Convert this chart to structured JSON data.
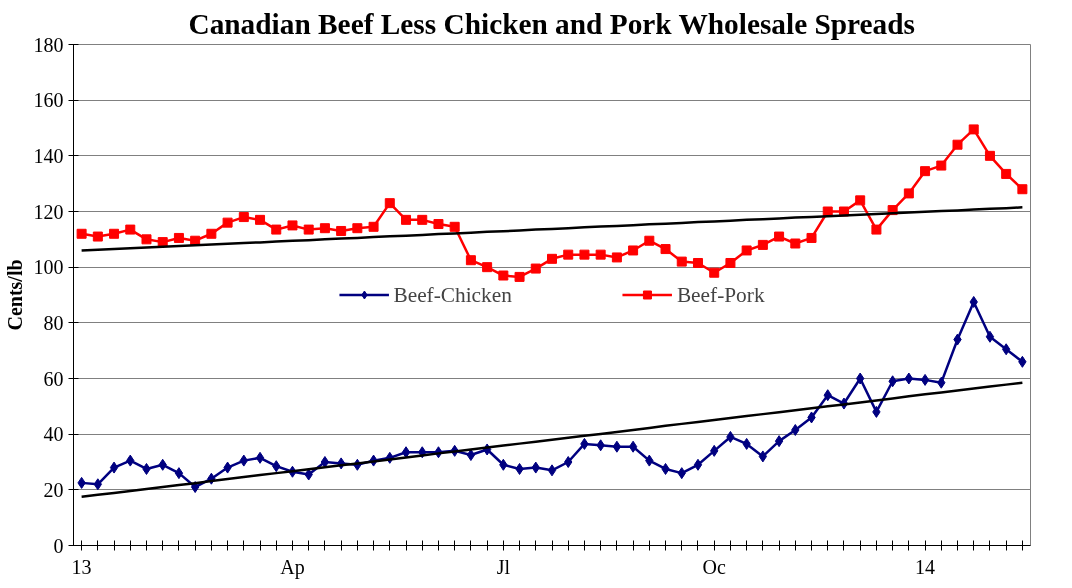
{
  "chart_data": {
    "type": "line",
    "title": "Canadian Beef Less Chicken and Pork Wholesale Spreads",
    "ylabel": "Cents/lb",
    "categories": [
      "13",
      null,
      null,
      null,
      null,
      null,
      null,
      null,
      null,
      null,
      null,
      null,
      null,
      "Ap",
      null,
      null,
      null,
      null,
      null,
      null,
      null,
      null,
      null,
      null,
      null,
      null,
      "Jl",
      null,
      null,
      null,
      null,
      null,
      null,
      null,
      null,
      null,
      null,
      null,
      null,
      "Oc",
      null,
      null,
      null,
      null,
      null,
      null,
      null,
      null,
      null,
      null,
      null,
      null,
      "14",
      null,
      null,
      null,
      null,
      null,
      null
    ],
    "ylim": [
      0,
      180
    ],
    "yticks": [
      0,
      20,
      40,
      60,
      80,
      100,
      120,
      140,
      160,
      180
    ],
    "grid": "y",
    "legend": "center",
    "series": [
      {
        "name": "Beef-Chicken",
        "color": "#000080",
        "marker": "diamond",
        "values": [
          22.5,
          22,
          28,
          30.5,
          27.5,
          29,
          26,
          21,
          24,
          28,
          30.5,
          31.5,
          28.5,
          26.5,
          25.5,
          30,
          29.5,
          29,
          30.5,
          31.5,
          33.5,
          33.5,
          33.5,
          34,
          32.5,
          34.5,
          29,
          27.5,
          28,
          27,
          30,
          36.5,
          36,
          35.5,
          35.5,
          30.5,
          27.5,
          26,
          29,
          34,
          39,
          36.5,
          32,
          37.5,
          41.5,
          46,
          54,
          51,
          60,
          48,
          59,
          60,
          59.5,
          58.5,
          74,
          87.5,
          75,
          70.5,
          66
        ]
      },
      {
        "name": "Beef-Pork",
        "color": "#ff0000",
        "marker": "square",
        "values": [
          112,
          111,
          112,
          113.5,
          110,
          109,
          110.5,
          109.5,
          112,
          116,
          118,
          117,
          113.5,
          115,
          113.5,
          114,
          113,
          114,
          114.5,
          123,
          117,
          117,
          115.5,
          114.5,
          102.5,
          100,
          97,
          96.5,
          99.5,
          103,
          104.5,
          104.5,
          104.5,
          103.5,
          106,
          109.5,
          106.5,
          102,
          101.5,
          98,
          101.5,
          106,
          108,
          111,
          108.5,
          110.5,
          120,
          120,
          124,
          113.5,
          120.5,
          126.5,
          134.5,
          136.5,
          144,
          149.5,
          140,
          133.5,
          128
        ]
      },
      {
        "color": "#000000",
        "marker": "none",
        "values": [
          17.5,
          18.2,
          18.9,
          19.6,
          20.3,
          21.0,
          21.7,
          22.4,
          23.2,
          23.9,
          24.6,
          25.3,
          26.0,
          26.7,
          27.4,
          28.1,
          28.8,
          29.5,
          30.2,
          30.9,
          31.6,
          32.3,
          33.1,
          33.8,
          34.5,
          35.2,
          35.9,
          36.6,
          37.3,
          38.0,
          38.7,
          39.4,
          40.1,
          40.8,
          41.5,
          42.2,
          43.0,
          43.7,
          44.4,
          45.1,
          45.8,
          46.5,
          47.2,
          47.9,
          48.6,
          49.3,
          50.0,
          50.7,
          51.4,
          52.1,
          52.8,
          53.6,
          54.3,
          55.0,
          55.7,
          56.4,
          57.1,
          57.8,
          58.5
        ]
      },
      {
        "color": "#000000",
        "marker": "none",
        "values": [
          106.0,
          106.3,
          106.5,
          106.8,
          107.1,
          107.3,
          107.6,
          107.9,
          108.1,
          108.4,
          108.7,
          108.9,
          109.2,
          109.5,
          109.7,
          110.0,
          110.3,
          110.5,
          110.8,
          111.1,
          111.3,
          111.6,
          111.9,
          112.1,
          112.4,
          112.7,
          112.9,
          113.2,
          113.5,
          113.7,
          114.0,
          114.3,
          114.6,
          114.8,
          115.1,
          115.4,
          115.6,
          115.9,
          116.2,
          116.4,
          116.7,
          117.0,
          117.2,
          117.5,
          117.8,
          118.0,
          118.3,
          118.6,
          118.8,
          119.1,
          119.4,
          119.6,
          119.9,
          120.2,
          120.4,
          120.7,
          121.0,
          121.2,
          121.5
        ]
      }
    ]
  }
}
